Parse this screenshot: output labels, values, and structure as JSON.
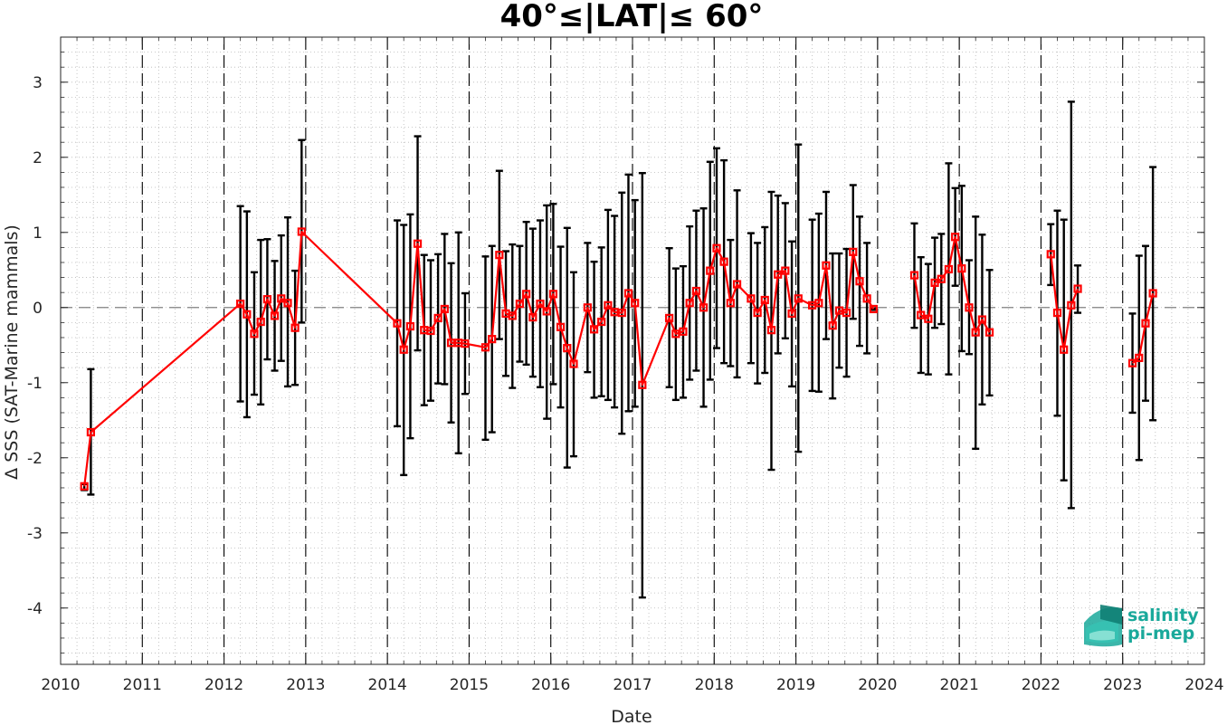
{
  "chart_data": {
    "type": "line",
    "title": "40°≤|LAT|≤ 60°",
    "xlabel": "Date",
    "ylabel": "Δ SSS (SAT-Marine mammals)",
    "xlim": [
      2010,
      2024
    ],
    "ylim": [
      -4.75,
      3.6
    ],
    "xticks": [
      "2010",
      "2011",
      "2012",
      "2013",
      "2014",
      "2015",
      "2016",
      "2017",
      "2018",
      "2019",
      "2020",
      "2021",
      "2022",
      "2023",
      "2024"
    ],
    "yticks": [
      "3",
      "2",
      "1",
      "0",
      "-1",
      "-2",
      "-3",
      "-4"
    ],
    "grid": "minor dotted",
    "reference_line": 0,
    "year_separators": true,
    "series": [
      {
        "marker": "square",
        "color": "#ff0000",
        "errorbar_color": "#000000",
        "segments": [
          [
            {
              "x": 2010.29,
              "y": -2.38,
              "lo": -2.43,
              "hi": -2.35
            },
            {
              "x": 2010.37,
              "y": -1.66,
              "lo": -2.49,
              "hi": -0.82
            },
            {
              "x": 2012.2,
              "y": 0.05,
              "lo": -1.25,
              "hi": 1.35
            },
            {
              "x": 2012.28,
              "y": -0.09,
              "lo": -1.46,
              "hi": 1.28
            },
            {
              "x": 2012.37,
              "y": -0.35,
              "lo": -1.16,
              "hi": 0.47
            },
            {
              "x": 2012.45,
              "y": -0.19,
              "lo": -1.29,
              "hi": 0.9
            },
            {
              "x": 2012.53,
              "y": 0.11,
              "lo": -0.69,
              "hi": 0.91
            },
            {
              "x": 2012.62,
              "y": -0.11,
              "lo": -0.84,
              "hi": 0.62
            },
            {
              "x": 2012.7,
              "y": 0.12,
              "lo": -0.71,
              "hi": 0.96
            },
            {
              "x": 2012.78,
              "y": 0.06,
              "lo": -1.05,
              "hi": 1.2
            },
            {
              "x": 2012.87,
              "y": -0.27,
              "lo": -1.03,
              "hi": 0.49
            },
            {
              "x": 2012.95,
              "y": 1.01,
              "lo": -0.2,
              "hi": 2.23
            },
            {
              "x": 2014.12,
              "y": -0.21,
              "lo": -1.58,
              "hi": 1.16
            },
            {
              "x": 2014.2,
              "y": -0.56,
              "lo": -2.23,
              "hi": 1.1
            },
            {
              "x": 2014.28,
              "y": -0.25,
              "lo": -1.74,
              "hi": 1.24
            },
            {
              "x": 2014.37,
              "y": 0.85,
              "lo": -0.57,
              "hi": 2.28
            },
            {
              "x": 2014.45,
              "y": -0.3,
              "lo": -1.3,
              "hi": 0.7
            },
            {
              "x": 2014.53,
              "y": -0.31,
              "lo": -1.24,
              "hi": 0.63
            },
            {
              "x": 2014.62,
              "y": -0.14,
              "lo": -1.01,
              "hi": 0.71
            },
            {
              "x": 2014.7,
              "y": -0.02,
              "lo": -1.02,
              "hi": 0.98
            },
            {
              "x": 2014.78,
              "y": -0.47,
              "lo": -1.53,
              "hi": 0.59
            },
            {
              "x": 2014.87,
              "y": -0.47,
              "lo": -1.94,
              "hi": 1.0
            },
            {
              "x": 2014.95,
              "y": -0.48,
              "lo": -1.15,
              "hi": 0.19
            },
            {
              "x": 2015.2,
              "y": -0.53,
              "lo": -1.76,
              "hi": 0.68
            },
            {
              "x": 2015.28,
              "y": -0.42,
              "lo": -1.66,
              "hi": 0.82
            },
            {
              "x": 2015.37,
              "y": 0.7,
              "lo": -0.42,
              "hi": 1.82
            },
            {
              "x": 2015.45,
              "y": -0.08,
              "lo": -0.91,
              "hi": 0.75
            },
            {
              "x": 2015.53,
              "y": -0.11,
              "lo": -1.07,
              "hi": 0.84
            },
            {
              "x": 2015.62,
              "y": 0.05,
              "lo": -0.72,
              "hi": 0.82
            },
            {
              "x": 2015.7,
              "y": 0.18,
              "lo": -0.76,
              "hi": 1.14
            },
            {
              "x": 2015.78,
              "y": -0.13,
              "lo": -0.92,
              "hi": 1.05
            },
            {
              "x": 2015.87,
              "y": 0.05,
              "lo": -1.06,
              "hi": 1.16
            },
            {
              "x": 2015.95,
              "y": -0.05,
              "lo": -1.48,
              "hi": 1.36
            },
            {
              "x": 2016.03,
              "y": 0.18,
              "lo": -1.02,
              "hi": 1.38
            },
            {
              "x": 2016.12,
              "y": -0.26,
              "lo": -1.33,
              "hi": 0.81
            },
            {
              "x": 2016.2,
              "y": -0.54,
              "lo": -2.13,
              "hi": 1.06
            },
            {
              "x": 2016.28,
              "y": -0.75,
              "lo": -1.98,
              "hi": 0.47
            },
            {
              "x": 2016.45,
              "y": 0.0,
              "lo": -0.86,
              "hi": 0.86
            },
            {
              "x": 2016.53,
              "y": -0.29,
              "lo": -1.2,
              "hi": 0.61
            },
            {
              "x": 2016.62,
              "y": -0.19,
              "lo": -1.18,
              "hi": 0.8
            },
            {
              "x": 2016.7,
              "y": 0.03,
              "lo": -1.23,
              "hi": 1.3
            },
            {
              "x": 2016.78,
              "y": -0.06,
              "lo": -1.33,
              "hi": 1.22
            },
            {
              "x": 2016.87,
              "y": -0.07,
              "lo": -1.68,
              "hi": 1.53
            },
            {
              "x": 2016.95,
              "y": 0.19,
              "lo": -1.38,
              "hi": 1.77
            },
            {
              "x": 2017.03,
              "y": 0.06,
              "lo": -1.32,
              "hi": 1.43
            },
            {
              "x": 2017.12,
              "y": -1.03,
              "lo": -3.86,
              "hi": 1.79
            },
            {
              "x": 2017.45,
              "y": -0.14,
              "lo": -1.06,
              "hi": 0.79
            },
            {
              "x": 2017.53,
              "y": -0.35,
              "lo": -1.23,
              "hi": 0.52
            },
            {
              "x": 2017.62,
              "y": -0.32,
              "lo": -1.2,
              "hi": 0.55
            },
            {
              "x": 2017.7,
              "y": 0.06,
              "lo": -0.96,
              "hi": 1.08
            },
            {
              "x": 2017.78,
              "y": 0.22,
              "lo": -0.84,
              "hi": 1.29
            },
            {
              "x": 2017.87,
              "y": 0.0,
              "lo": -1.32,
              "hi": 1.32
            },
            {
              "x": 2017.95,
              "y": 0.49,
              "lo": -0.96,
              "hi": 1.94
            },
            {
              "x": 2018.03,
              "y": 0.79,
              "lo": -0.54,
              "hi": 2.12
            },
            {
              "x": 2018.12,
              "y": 0.61,
              "lo": -0.74,
              "hi": 1.96
            },
            {
              "x": 2018.2,
              "y": 0.06,
              "lo": -0.78,
              "hi": 0.9
            },
            {
              "x": 2018.28,
              "y": 0.31,
              "lo": -0.93,
              "hi": 1.56
            },
            {
              "x": 2018.45,
              "y": 0.12,
              "lo": -0.74,
              "hi": 0.99
            },
            {
              "x": 2018.53,
              "y": -0.07,
              "lo": -1.01,
              "hi": 0.86
            },
            {
              "x": 2018.62,
              "y": 0.1,
              "lo": -0.87,
              "hi": 1.07
            },
            {
              "x": 2018.7,
              "y": -0.3,
              "lo": -2.16,
              "hi": 1.54
            },
            {
              "x": 2018.78,
              "y": 0.44,
              "lo": -0.61,
              "hi": 1.49
            },
            {
              "x": 2018.87,
              "y": 0.49,
              "lo": -0.41,
              "hi": 1.39
            },
            {
              "x": 2018.95,
              "y": -0.08,
              "lo": -1.05,
              "hi": 0.88
            },
            {
              "x": 2019.03,
              "y": 0.12,
              "lo": -1.92,
              "hi": 2.17
            },
            {
              "x": 2019.2,
              "y": 0.03,
              "lo": -1.11,
              "hi": 1.17
            },
            {
              "x": 2019.28,
              "y": 0.06,
              "lo": -1.12,
              "hi": 1.25
            },
            {
              "x": 2019.37,
              "y": 0.56,
              "lo": -0.42,
              "hi": 1.54
            },
            {
              "x": 2019.45,
              "y": -0.24,
              "lo": -1.21,
              "hi": 0.72
            },
            {
              "x": 2019.53,
              "y": -0.04,
              "lo": -0.8,
              "hi": 0.72
            },
            {
              "x": 2019.62,
              "y": -0.07,
              "lo": -0.92,
              "hi": 0.78
            },
            {
              "x": 2019.7,
              "y": 0.74,
              "lo": -0.15,
              "hi": 1.63
            },
            {
              "x": 2019.78,
              "y": 0.35,
              "lo": -0.51,
              "hi": 1.21
            },
            {
              "x": 2019.87,
              "y": 0.12,
              "lo": -0.61,
              "hi": 0.86
            },
            {
              "x": 2019.95,
              "y": -0.02,
              "lo": -0.03,
              "hi": -0.01
            }
          ],
          [
            {
              "x": 2020.45,
              "y": 0.43,
              "lo": -0.27,
              "hi": 1.12
            },
            {
              "x": 2020.53,
              "y": -0.1,
              "lo": -0.87,
              "hi": 0.67
            },
            {
              "x": 2020.62,
              "y": -0.15,
              "lo": -0.89,
              "hi": 0.58
            },
            {
              "x": 2020.7,
              "y": 0.33,
              "lo": -0.27,
              "hi": 0.93
            },
            {
              "x": 2020.78,
              "y": 0.38,
              "lo": -0.22,
              "hi": 0.98
            },
            {
              "x": 2020.87,
              "y": 0.51,
              "lo": -0.89,
              "hi": 1.92
            },
            {
              "x": 2020.95,
              "y": 0.94,
              "lo": 0.29,
              "hi": 1.59
            },
            {
              "x": 2021.03,
              "y": 0.52,
              "lo": -0.58,
              "hi": 1.62
            },
            {
              "x": 2021.12,
              "y": 0.0,
              "lo": -0.62,
              "hi": 0.63
            },
            {
              "x": 2021.2,
              "y": -0.33,
              "lo": -1.88,
              "hi": 1.21
            },
            {
              "x": 2021.28,
              "y": -0.16,
              "lo": -1.29,
              "hi": 0.97
            },
            {
              "x": 2021.37,
              "y": -0.33,
              "lo": -1.17,
              "hi": 0.5
            }
          ],
          [
            {
              "x": 2022.12,
              "y": 0.71,
              "lo": 0.3,
              "hi": 1.11
            },
            {
              "x": 2022.2,
              "y": -0.07,
              "lo": -1.44,
              "hi": 1.29
            },
            {
              "x": 2022.28,
              "y": -0.56,
              "lo": -2.3,
              "hi": 1.17
            },
            {
              "x": 2022.37,
              "y": 0.03,
              "lo": -2.67,
              "hi": 2.74
            },
            {
              "x": 2022.45,
              "y": 0.25,
              "lo": -0.07,
              "hi": 0.56
            }
          ],
          [
            {
              "x": 2023.12,
              "y": -0.74,
              "lo": -1.4,
              "hi": -0.08
            },
            {
              "x": 2023.2,
              "y": -0.67,
              "lo": -2.03,
              "hi": 0.69
            },
            {
              "x": 2023.28,
              "y": -0.21,
              "lo": -1.24,
              "hi": 0.82
            },
            {
              "x": 2023.37,
              "y": 0.19,
              "lo": -1.5,
              "hi": 1.87
            }
          ]
        ]
      }
    ]
  },
  "logo": {
    "line1": "salinity",
    "line2": "pi-mep",
    "color": "#1aa99b"
  }
}
